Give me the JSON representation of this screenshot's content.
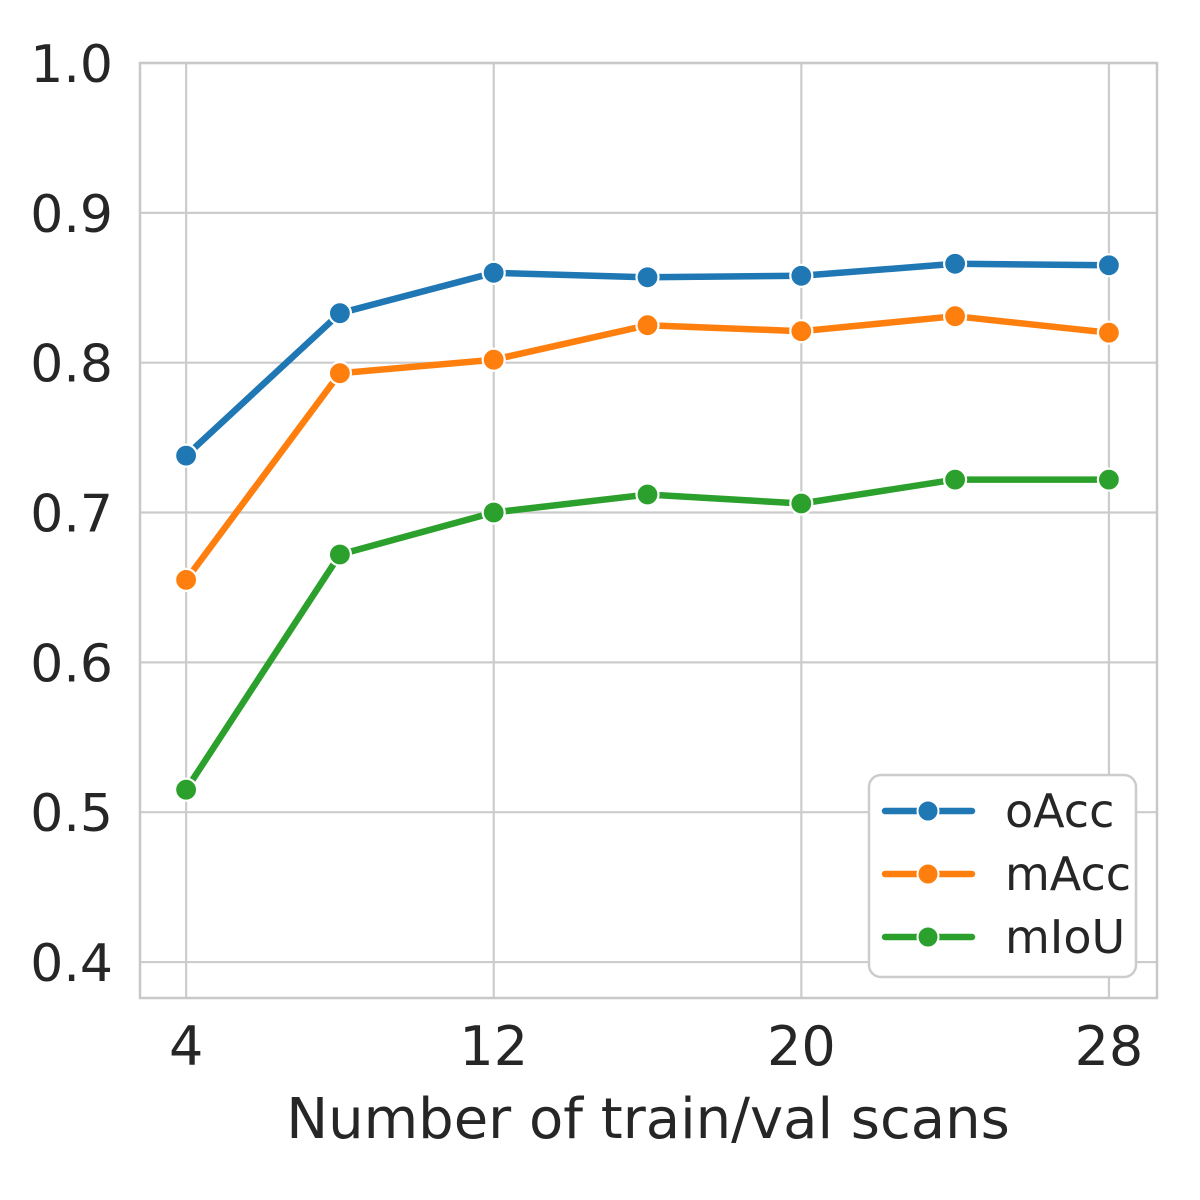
{
  "chart_data": {
    "type": "line",
    "title": "",
    "xlabel": "Number of train/val scans",
    "ylabel": "",
    "x": [
      4,
      8,
      12,
      16,
      20,
      24,
      28
    ],
    "series": [
      {
        "name": "oAcc",
        "color": "#1f77b4",
        "values": [
          0.738,
          0.833,
          0.86,
          0.857,
          0.858,
          0.866,
          0.865
        ]
      },
      {
        "name": "mAcc",
        "color": "#ff7f0e",
        "values": [
          0.655,
          0.793,
          0.802,
          0.825,
          0.821,
          0.831,
          0.82
        ]
      },
      {
        "name": "mIoU",
        "color": "#2ca02c",
        "values": [
          0.515,
          0.672,
          0.7,
          0.712,
          0.706,
          0.722,
          0.722
        ]
      }
    ],
    "xticks": [
      4,
      12,
      20,
      28
    ],
    "xtick_labels": [
      "4",
      "12",
      "20",
      "28"
    ],
    "yticks": [
      1.0,
      0.9,
      0.8,
      0.7,
      0.6,
      0.5,
      0.4
    ],
    "ytick_labels": [
      "1.0",
      "0.9",
      "0.8",
      "0.7",
      "0.6",
      "0.5",
      "0.4"
    ],
    "xlim": [
      2.8,
      29.25
    ],
    "ylim": [
      0.376,
      1.0
    ],
    "grid": true,
    "legend": {
      "position": "lower right",
      "entries": [
        "oAcc",
        "mAcc",
        "mIoU"
      ]
    },
    "colors": {
      "background": "#ffffff",
      "grid": "#cccccc",
      "spine": "#c8c8c8",
      "text": "#262626",
      "marker_edge": "#ffffff",
      "legend_border": "#cccccc",
      "legend_background": "#ffffff"
    }
  }
}
